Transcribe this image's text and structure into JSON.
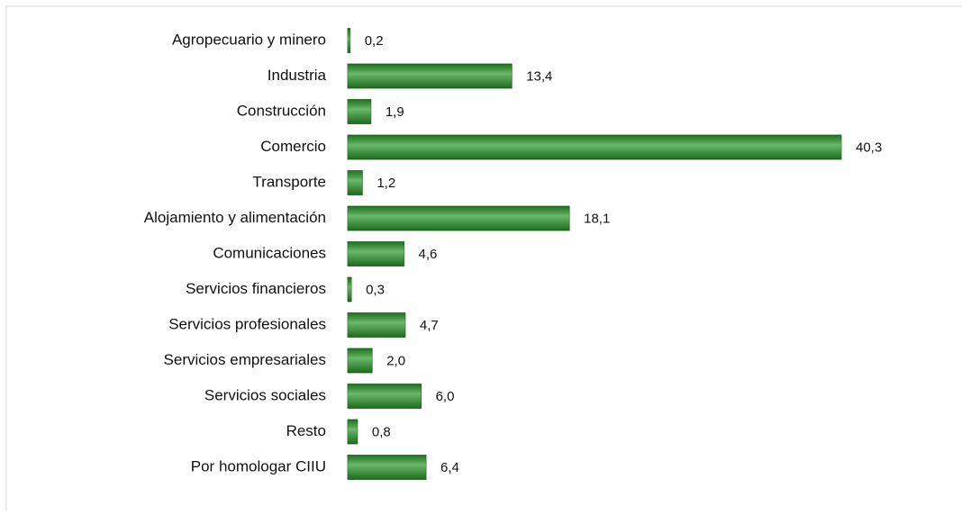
{
  "chart_data": {
    "type": "bar",
    "orientation": "horizontal",
    "categories": [
      "Agropecuario y minero",
      "Industria",
      "Construcción",
      "Comercio",
      "Transporte",
      "Alojamiento y alimentación",
      "Comunicaciones",
      "Servicios financieros",
      "Servicios profesionales",
      "Servicios empresariales",
      "Servicios sociales",
      "Resto",
      "Por homologar CIIU"
    ],
    "values": [
      0.2,
      13.4,
      1.9,
      40.3,
      1.2,
      18.1,
      4.6,
      0.3,
      4.7,
      2.0,
      6.0,
      0.8,
      6.4
    ],
    "value_labels": [
      "0,2",
      "13,4",
      "1,9",
      "40,3",
      "1,2",
      "18,1",
      "4,6",
      "0,3",
      "4,7",
      "2,0",
      "6,0",
      "0,8",
      "6,4"
    ],
    "color": "#2a9a2a"
  }
}
